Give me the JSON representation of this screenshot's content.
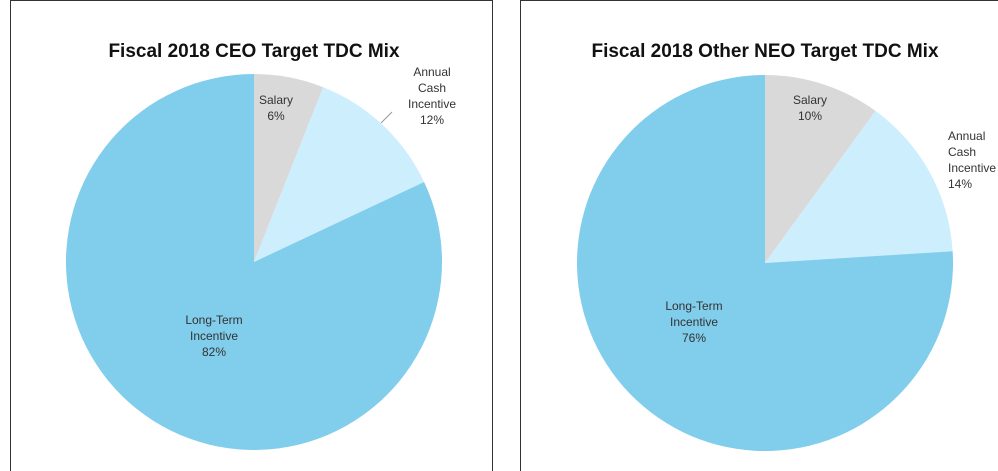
{
  "chart_data": [
    {
      "type": "pie",
      "title": "Fiscal 2018 CEO Target TDC Mix",
      "categories": [
        "Salary",
        "Annual Cash Incentive",
        "Long-Term Incentive"
      ],
      "values": [
        6,
        12,
        82
      ],
      "value_labels": [
        "6%",
        "12%",
        "82%"
      ],
      "colors": [
        "#d9d9d9",
        "#cdeefc",
        "#80cdec"
      ]
    },
    {
      "type": "pie",
      "title": "Fiscal 2018 Other NEO Target TDC Mix",
      "categories": [
        "Salary",
        "Annual Cash Incentive",
        "Long-Term Incentive"
      ],
      "values": [
        10,
        14,
        76
      ],
      "value_labels": [
        "10%",
        "14%",
        "76%"
      ],
      "colors": [
        "#d9d9d9",
        "#cdeefc",
        "#80cdec"
      ]
    }
  ]
}
